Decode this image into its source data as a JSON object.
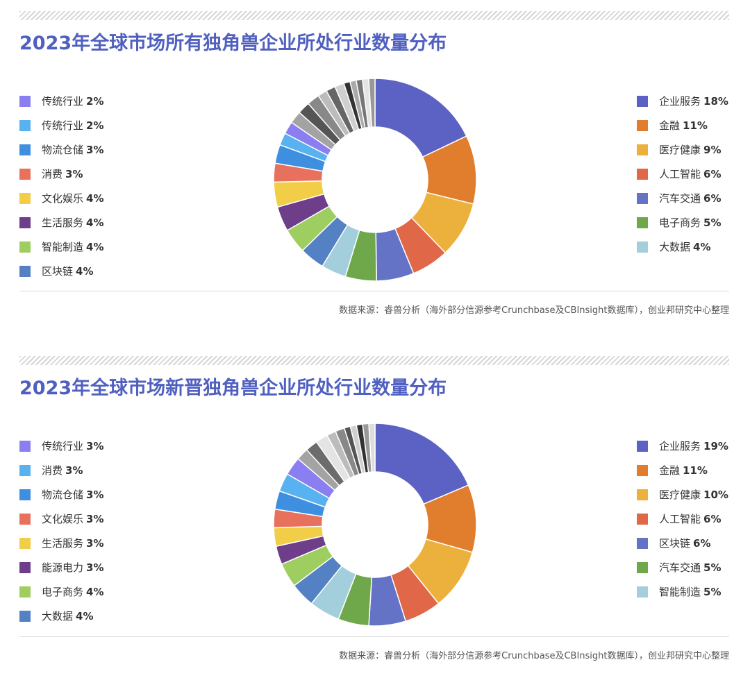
{
  "panels": [
    {
      "title": "2023年全球市场所有独角兽企业所处行业数量分布",
      "source": "数据来源：睿兽分析（海外部分信源参考Crunchbase及CBInsight数据库），创业邦研究中心整理",
      "legend_right": [
        {
          "label": "企业服务",
          "value": "18%",
          "color": "#5b62c4"
        },
        {
          "label": "金融",
          "value": "11%",
          "color": "#e07e2e"
        },
        {
          "label": "医疗健康",
          "value": "9%",
          "color": "#ecb13c"
        },
        {
          "label": "人工智能",
          "value": "6%",
          "color": "#e06748"
        },
        {
          "label": "汽车交通",
          "value": "6%",
          "color": "#6473c6"
        },
        {
          "label": "电子商务",
          "value": "5%",
          "color": "#6ea84a"
        },
        {
          "label": "大数据",
          "value": "4%",
          "color": "#a3cedb"
        }
      ],
      "legend_left": [
        {
          "label": "传统行业",
          "value": "2%",
          "color": "#8a7ef0"
        },
        {
          "label": "传统行业",
          "value": "2%",
          "color": "#58b2ef"
        },
        {
          "label": "物流仓储",
          "value": "3%",
          "color": "#3e8fe0"
        },
        {
          "label": "消费",
          "value": "3%",
          "color": "#e8715e"
        },
        {
          "label": "文化娱乐",
          "value": "4%",
          "color": "#f2cd47"
        },
        {
          "label": "生活服务",
          "value": "4%",
          "color": "#6e3e8a"
        },
        {
          "label": "智能制造",
          "value": "4%",
          "color": "#9ecd60"
        },
        {
          "label": "区块链",
          "value": "4%",
          "color": "#5480c4"
        }
      ]
    },
    {
      "title": "2023年全球市场新晋独角兽企业所处行业数量分布",
      "source": "数据来源：睿兽分析（海外部分信源参考Crunchbase及CBInsight数据库），创业邦研究中心整理",
      "legend_right": [
        {
          "label": "企业服务",
          "value": "19%",
          "color": "#5b62c4"
        },
        {
          "label": "金融",
          "value": "11%",
          "color": "#e07e2e"
        },
        {
          "label": "医疗健康",
          "value": "10%",
          "color": "#ecb13c"
        },
        {
          "label": "人工智能",
          "value": "6%",
          "color": "#e06748"
        },
        {
          "label": "区块链",
          "value": "6%",
          "color": "#6473c6"
        },
        {
          "label": "汽车交通",
          "value": "5%",
          "color": "#6ea84a"
        },
        {
          "label": "智能制造",
          "value": "5%",
          "color": "#a3cedb"
        }
      ],
      "legend_left": [
        {
          "label": "传统行业",
          "value": "3%",
          "color": "#8a7ef0"
        },
        {
          "label": "消费",
          "value": "3%",
          "color": "#58b2ef"
        },
        {
          "label": "物流仓储",
          "value": "3%",
          "color": "#3e8fe0"
        },
        {
          "label": "文化娱乐",
          "value": "3%",
          "color": "#e8715e"
        },
        {
          "label": "生活服务",
          "value": "3%",
          "color": "#f2cd47"
        },
        {
          "label": "能源电力",
          "value": "3%",
          "color": "#6e3e8a"
        },
        {
          "label": "电子商务",
          "value": "4%",
          "color": "#9ecd60"
        },
        {
          "label": "大数据",
          "value": "4%",
          "color": "#5480c4"
        }
      ]
    }
  ],
  "chart_data": [
    {
      "type": "pie",
      "donut": true,
      "title": "2023年全球市场所有独角兽企业所处行业数量分布",
      "unit": "%",
      "slices": [
        {
          "label": "企业服务",
          "value": 18,
          "color": "#5b62c4"
        },
        {
          "label": "金融",
          "value": 11,
          "color": "#e07e2e"
        },
        {
          "label": "医疗健康",
          "value": 9,
          "color": "#ecb13c"
        },
        {
          "label": "人工智能",
          "value": 6,
          "color": "#e06748"
        },
        {
          "label": "汽车交通",
          "value": 6,
          "color": "#6473c6"
        },
        {
          "label": "电子商务",
          "value": 5,
          "color": "#6ea84a"
        },
        {
          "label": "大数据",
          "value": 4,
          "color": "#a3cedb"
        },
        {
          "label": "区块链",
          "value": 4,
          "color": "#5480c4"
        },
        {
          "label": "智能制造",
          "value": 4,
          "color": "#9ecd60"
        },
        {
          "label": "生活服务",
          "value": 4,
          "color": "#6e3e8a"
        },
        {
          "label": "文化娱乐",
          "value": 4,
          "color": "#f2cd47"
        },
        {
          "label": "消费",
          "value": 3,
          "color": "#e8715e"
        },
        {
          "label": "物流仓储",
          "value": 3,
          "color": "#3e8fe0"
        },
        {
          "label": "传统行业",
          "value": 2,
          "color": "#58b2ef"
        },
        {
          "label": "传统行业",
          "value": 2,
          "color": "#8a7ef0"
        }
      ],
      "unlabeled_slices": [
        {
          "value": 2,
          "color": "#a3a3a3"
        },
        {
          "value": 2,
          "color": "#555555"
        },
        {
          "value": 2,
          "color": "#888888"
        },
        {
          "value": 1.5,
          "color": "#bcbcbc"
        },
        {
          "value": 1.5,
          "color": "#666666"
        },
        {
          "value": 1.5,
          "color": "#cfcfcf"
        },
        {
          "value": 1,
          "color": "#333333"
        },
        {
          "value": 1,
          "color": "#aaaaaa"
        },
        {
          "value": 1,
          "color": "#777777"
        },
        {
          "value": 1,
          "color": "#e4e4e4"
        },
        {
          "value": 1,
          "color": "#999999"
        }
      ]
    },
    {
      "type": "pie",
      "donut": true,
      "title": "2023年全球市场新晋独角兽企业所处行业数量分布",
      "unit": "%",
      "slices": [
        {
          "label": "企业服务",
          "value": 19,
          "color": "#5b62c4"
        },
        {
          "label": "金融",
          "value": 11,
          "color": "#e07e2e"
        },
        {
          "label": "医疗健康",
          "value": 10,
          "color": "#ecb13c"
        },
        {
          "label": "人工智能",
          "value": 6,
          "color": "#e06748"
        },
        {
          "label": "区块链",
          "value": 6,
          "color": "#6473c6"
        },
        {
          "label": "汽车交通",
          "value": 5,
          "color": "#6ea84a"
        },
        {
          "label": "智能制造",
          "value": 5,
          "color": "#a3cedb"
        },
        {
          "label": "大数据",
          "value": 4,
          "color": "#5480c4"
        },
        {
          "label": "电子商务",
          "value": 4,
          "color": "#9ecd60"
        },
        {
          "label": "能源电力",
          "value": 3,
          "color": "#6e3e8a"
        },
        {
          "label": "生活服务",
          "value": 3,
          "color": "#f2cd47"
        },
        {
          "label": "文化娱乐",
          "value": 3,
          "color": "#e8715e"
        },
        {
          "label": "物流仓储",
          "value": 3,
          "color": "#3e8fe0"
        },
        {
          "label": "消费",
          "value": 3,
          "color": "#58b2ef"
        },
        {
          "label": "传统行业",
          "value": 3,
          "color": "#8a7ef0"
        }
      ],
      "unlabeled_slices": [
        {
          "value": 2,
          "color": "#a3a3a3"
        },
        {
          "value": 2,
          "color": "#6c6c6c"
        },
        {
          "value": 2,
          "color": "#e4e4e4"
        },
        {
          "value": 1.5,
          "color": "#bcbcbc"
        },
        {
          "value": 1.5,
          "color": "#888888"
        },
        {
          "value": 1,
          "color": "#555555"
        },
        {
          "value": 1,
          "color": "#cfcfcf"
        },
        {
          "value": 1,
          "color": "#333333"
        },
        {
          "value": 1,
          "color": "#999999"
        },
        {
          "value": 1,
          "color": "#dddddd"
        }
      ]
    }
  ]
}
